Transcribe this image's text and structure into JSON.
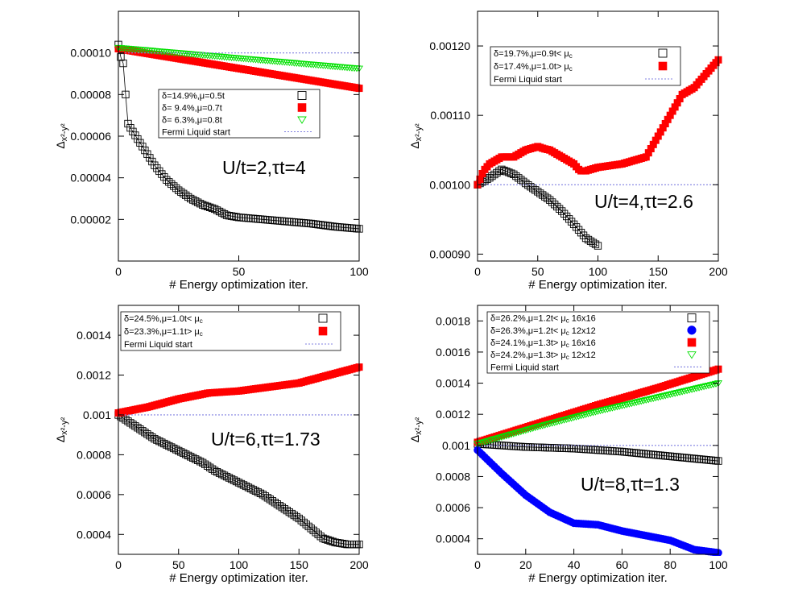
{
  "colors": {
    "black": "#000000",
    "red": "#ff0000",
    "green": "#00e000",
    "blue": "#0000ff",
    "ref": "#8080e0"
  },
  "chart_data": [
    {
      "type": "scatter",
      "title": "",
      "annotation": "U/t=2,τt=4",
      "xlabel": "# Energy optimization iter.",
      "ylabel": "Δx²-y²",
      "xlim": [
        0,
        100
      ],
      "ylim": [
        0.0,
        0.00012
      ],
      "xticks": [
        0,
        50,
        100
      ],
      "xtick_labels": [
        "0",
        "50",
        "100"
      ],
      "yticks": [
        2e-05,
        4e-05,
        6e-05,
        8e-05,
        0.0001
      ],
      "ytick_labels": [
        "0.00002",
        "0.00004",
        "0.00006",
        "0.00008",
        "0.00010"
      ],
      "legend_position": "middle-right",
      "series": [
        {
          "name": "δ=14.9%,μ=0.5t",
          "marker": "square-open",
          "color": "#000000",
          "x": [
            0,
            1,
            2,
            3,
            4,
            5,
            10,
            15,
            20,
            25,
            30,
            35,
            40,
            45,
            50,
            60,
            70,
            80,
            90,
            100
          ],
          "y": [
            0.000104,
            9.8e-05,
            9.5e-05,
            8e-05,
            6.6e-05,
            6.4e-05,
            5.5e-05,
            4.6e-05,
            3.9e-05,
            3.4e-05,
            3e-05,
            2.7e-05,
            2.5e-05,
            2.2e-05,
            2.1e-05,
            2e-05,
            1.9e-05,
            1.8e-05,
            1.65e-05,
            1.55e-05
          ]
        },
        {
          "name": "δ=  9.4%,μ=0.7t",
          "marker": "square-filled",
          "color": "#ff0000",
          "x": [
            0,
            100
          ],
          "y": [
            0.000102,
            8.3e-05
          ]
        },
        {
          "name": "δ=  6.3%,μ=0.8t",
          "marker": "triangle-down-open",
          "color": "#00e000",
          "x": [
            0,
            100
          ],
          "y": [
            0.0001025,
            9.25e-05
          ]
        },
        {
          "name": "Fermi Liquid start",
          "marker": "dotted-line",
          "color": "#8080e0",
          "x": [
            0,
            100
          ],
          "y": [
            0.0001,
            0.0001
          ]
        }
      ]
    },
    {
      "type": "scatter",
      "title": "",
      "annotation": "U/t=4,τt=2.6",
      "xlabel": "# Energy optimization iter.",
      "ylabel": "Δx²-y²",
      "xlim": [
        0,
        200
      ],
      "ylim": [
        0.00089,
        0.00125
      ],
      "xticks": [
        0,
        50,
        100,
        150,
        200
      ],
      "xtick_labels": [
        "0",
        "50",
        "100",
        "150",
        "200"
      ],
      "yticks": [
        0.0009,
        0.001,
        0.0011,
        0.0012
      ],
      "ytick_labels": [
        "0.00090",
        "0.00100",
        "0.00110",
        "0.00120"
      ],
      "legend_position": "top-left",
      "series": [
        {
          "name": "δ=19.7%,μ=0.9t< μc",
          "marker": "square-open",
          "color": "#000000",
          "x": [
            0,
            10,
            20,
            30,
            40,
            50,
            60,
            70,
            80,
            90,
            100
          ],
          "y": [
            0.001,
            0.00101,
            0.001022,
            0.001015,
            0.001002,
            0.00099,
            0.000978,
            0.000962,
            0.000943,
            0.000923,
            0.000912
          ]
        },
        {
          "name": "δ=17.4%,μ=1.0t> μc",
          "marker": "square-filled",
          "color": "#ff0000",
          "x": [
            0,
            5,
            10,
            20,
            30,
            40,
            50,
            55,
            60,
            70,
            80,
            85,
            90,
            100,
            120,
            140,
            150,
            160,
            170,
            180,
            190,
            200
          ],
          "y": [
            0.001,
            0.00102,
            0.00103,
            0.00104,
            0.00104,
            0.00105,
            0.001055,
            0.001052,
            0.00105,
            0.00104,
            0.00103,
            0.00102,
            0.00102,
            0.001025,
            0.00103,
            0.00104,
            0.00107,
            0.0011,
            0.00113,
            0.00114,
            0.00116,
            0.00118
          ]
        },
        {
          "name": "Fermi Liquid start",
          "marker": "dotted-line",
          "color": "#8080e0",
          "x": [
            0,
            200
          ],
          "y": [
            0.001,
            0.001
          ]
        }
      ]
    },
    {
      "type": "scatter",
      "title": "",
      "annotation": "U/t=6,τt=1.73",
      "xlabel": "# Energy optimization iter.",
      "ylabel": "Δx²-y²",
      "xlim": [
        0,
        200
      ],
      "ylim": [
        0.0003,
        0.00155
      ],
      "xticks": [
        0,
        50,
        100,
        150,
        200
      ],
      "xtick_labels": [
        "0",
        "50",
        "100",
        "150",
        "200"
      ],
      "yticks": [
        0.0004,
        0.0006,
        0.0008,
        0.001,
        0.0012,
        0.0014
      ],
      "ytick_labels": [
        "0.0004",
        "0.0006",
        "0.0008",
        "0.001",
        "0.0012",
        "0.0014"
      ],
      "legend_position": "top-left",
      "series": [
        {
          "name": "δ=24.5%,μ=1.0t< μc",
          "marker": "square-open",
          "color": "#000000",
          "x": [
            0,
            10,
            20,
            30,
            40,
            50,
            60,
            70,
            80,
            90,
            100,
            110,
            120,
            130,
            140,
            150,
            160,
            170,
            180,
            190,
            200
          ],
          "y": [
            0.001,
            0.00096,
            0.00092,
            0.00088,
            0.00085,
            0.00082,
            0.00079,
            0.00076,
            0.00072,
            0.00069,
            0.00066,
            0.00063,
            0.0006,
            0.00056,
            0.00052,
            0.00048,
            0.00043,
            0.00038,
            0.00036,
            0.00035,
            0.00035
          ]
        },
        {
          "name": "δ=23.3%,μ=1.1t> μc",
          "marker": "square-filled",
          "color": "#ff0000",
          "x": [
            0,
            25,
            50,
            75,
            100,
            125,
            150,
            175,
            200
          ],
          "y": [
            0.00101,
            0.00104,
            0.00108,
            0.00111,
            0.00112,
            0.00114,
            0.00116,
            0.0012,
            0.00124
          ]
        },
        {
          "name": "Fermi Liquid start",
          "marker": "dotted-line",
          "color": "#8080e0",
          "x": [
            0,
            200
          ],
          "y": [
            0.001,
            0.001
          ]
        }
      ]
    },
    {
      "type": "scatter",
      "title": "",
      "annotation": "U/t=8,τt=1.3",
      "xlabel": "# Energy optimization iter.",
      "ylabel": "Δx²-y²",
      "xlim": [
        0,
        100
      ],
      "ylim": [
        0.0003,
        0.0019
      ],
      "xticks": [
        0,
        20,
        40,
        60,
        80,
        100
      ],
      "xtick_labels": [
        "0",
        "20",
        "40",
        "60",
        "80",
        "100"
      ],
      "yticks": [
        0.0004,
        0.0006,
        0.0008,
        0.001,
        0.0012,
        0.0014,
        0.0016,
        0.0018
      ],
      "ytick_labels": [
        "0.0004",
        "0.0006",
        "0.0008",
        "0.001",
        "0.0012",
        "0.0014",
        "0.0016",
        "0.0018"
      ],
      "legend_position": "top-left",
      "series": [
        {
          "name": "δ=26.2%,μ=1.2t< μc 16x16",
          "marker": "square-open",
          "color": "#000000",
          "x": [
            0,
            20,
            40,
            60,
            80,
            100
          ],
          "y": [
            0.00101,
            0.00099,
            0.00098,
            0.00096,
            0.00093,
            0.0009
          ]
        },
        {
          "name": "δ=26.3%,μ=1.2t< μc 12x12",
          "marker": "circle-filled",
          "color": "#0000ff",
          "x": [
            0,
            10,
            20,
            30,
            40,
            50,
            60,
            70,
            80,
            90,
            100
          ],
          "y": [
            0.00097,
            0.00082,
            0.00068,
            0.00057,
            0.0005,
            0.00049,
            0.00045,
            0.00042,
            0.00039,
            0.00033,
            0.00031
          ]
        },
        {
          "name": "δ=24.1%,μ=1.3t> μc 16x16",
          "marker": "square-filled",
          "color": "#ff0000",
          "x": [
            0,
            25,
            50,
            75,
            100
          ],
          "y": [
            0.00102,
            0.00114,
            0.00126,
            0.00137,
            0.00149
          ]
        },
        {
          "name": "δ=24.2%,μ=1.3t> μc 12x12",
          "marker": "triangle-down-open",
          "color": "#00e000",
          "x": [
            0,
            25,
            50,
            75,
            100
          ],
          "y": [
            0.00101,
            0.00112,
            0.00122,
            0.00131,
            0.0014
          ]
        },
        {
          "name": "Fermi Liquid start",
          "marker": "dotted-line",
          "color": "#8080e0",
          "x": [
            0,
            100
          ],
          "y": [
            0.001,
            0.001
          ]
        }
      ]
    }
  ]
}
